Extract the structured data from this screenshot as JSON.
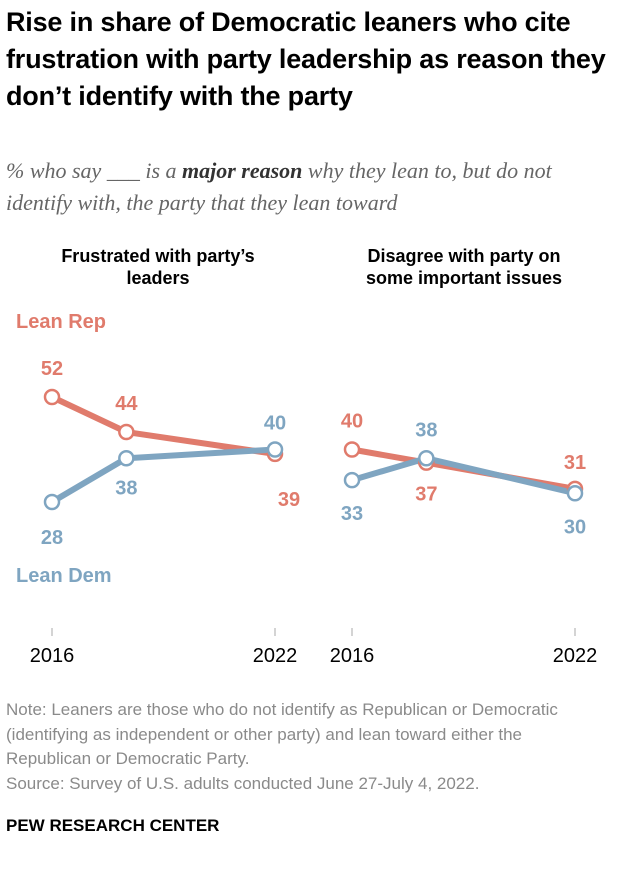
{
  "title": "Rise in share of Democratic leaners who cite frustration with party leadership as reason they don’t identify with the party",
  "subtitle_pre": "% who say ___ is a ",
  "subtitle_bold": "major reason",
  "subtitle_post": " why they lean to, but do not identify with, the party that they lean toward",
  "note": "Note: Leaners are those who do not identify as Republican or Democratic (identifying as independent or other party) and lean toward either the Republican or Democratic Party.",
  "source": "Source: Survey of U.S. adults conducted June 27-July 4, 2022.",
  "brand": "PEW RESEARCH CENTER",
  "colors": {
    "lean_rep": "#E07B6C",
    "lean_dem": "#7FA5C1"
  },
  "chart_data": [
    {
      "type": "line",
      "title": "Frustrated with party’s leaders",
      "x": [
        2016,
        2018,
        2022
      ],
      "x_tick_labels": [
        "2016",
        "2022"
      ],
      "series": [
        {
          "name": "Lean Rep",
          "values": [
            52,
            44,
            39
          ]
        },
        {
          "name": "Lean Dem",
          "values": [
            28,
            38,
            40
          ]
        }
      ],
      "grid": false
    },
    {
      "type": "line",
      "title": "Disagree with party on some important issues",
      "x": [
        2016,
        2018,
        2022
      ],
      "x_tick_labels": [
        "2016",
        "2022"
      ],
      "series": [
        {
          "name": "Lean Rep",
          "values": [
            40,
            37,
            31
          ]
        },
        {
          "name": "Lean Dem",
          "values": [
            33,
            38,
            30
          ]
        }
      ],
      "grid": false
    }
  ]
}
